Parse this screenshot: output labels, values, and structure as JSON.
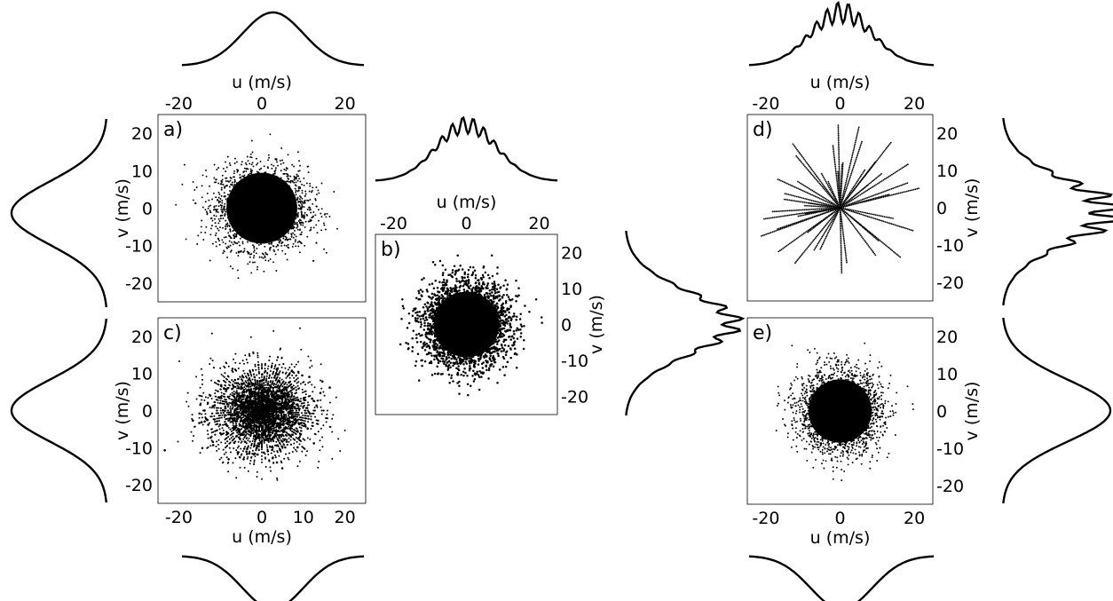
{
  "chart_data": [
    {
      "panel": "a)",
      "type": "scatter",
      "xlabel": "u (m/s)",
      "ylabel": "v (m/s)",
      "xlim": [
        -25,
        25
      ],
      "ylim": [
        -25,
        25
      ],
      "xticks": [
        "-20",
        "0",
        "20"
      ],
      "yticks": [
        "20",
        "10",
        "0",
        "-10",
        "-20"
      ],
      "x_axis_position": "top",
      "y_axis_position": "left",
      "distribution": "gaussian cloud",
      "center": [
        0,
        0
      ],
      "spread_sd": [
        5.5,
        5.5
      ],
      "outer_extent": 22,
      "marginals": {
        "u": "top",
        "v": "left"
      }
    },
    {
      "panel": "b)",
      "type": "scatter",
      "xlabel": "u (m/s)",
      "ylabel": "v (m/s)",
      "xlim": [
        -25,
        25
      ],
      "ylim": [
        -25,
        25
      ],
      "xticks": [
        "-20",
        "0",
        "20"
      ],
      "yticks": [
        "20",
        "10",
        "0",
        "-10",
        "-20"
      ],
      "x_axis_position": "top",
      "y_axis_position": "right",
      "distribution": "dense gaussian cloud",
      "center": [
        0,
        0
      ],
      "spread_sd": [
        5.8,
        5.8
      ],
      "outer_extent": 21,
      "marginals": {
        "u": "top",
        "v": "right"
      }
    },
    {
      "panel": "c)",
      "type": "scatter",
      "xlabel": "u (m/s)",
      "ylabel": "v (m/s)",
      "xlim": [
        -25,
        25
      ],
      "ylim": [
        -25,
        25
      ],
      "xticks": [
        "-20",
        "0",
        "10",
        "20"
      ],
      "yticks": [
        "20",
        "10",
        "0",
        "-10",
        "-20"
      ],
      "x_axis_position": "bottom",
      "y_axis_position": "left",
      "distribution": "radial streaks",
      "center": [
        0,
        0
      ],
      "spread_sd": [
        6,
        6
      ],
      "outer_extent": 24,
      "marginals": {
        "u": "bottom",
        "v": "left"
      }
    },
    {
      "panel": "d)",
      "type": "scatter",
      "xlabel": "u (m/s)",
      "ylabel": "v (m/s)",
      "xlim": [
        -25,
        25
      ],
      "ylim": [
        -25,
        25
      ],
      "xticks": [
        "-20",
        "0",
        "20"
      ],
      "yticks": [
        "20",
        "10",
        "0",
        "-10",
        "-20"
      ],
      "x_axis_position": "top",
      "y_axis_position": "right",
      "distribution": "radial lines (discrete directions)",
      "center": [
        0,
        0
      ],
      "outer_extent": 23,
      "marginals": {
        "u": "top",
        "v": "right"
      }
    },
    {
      "panel": "e)",
      "type": "scatter",
      "xlabel": "u (m/s)",
      "ylabel": "v (m/s)",
      "xlim": [
        -25,
        25
      ],
      "ylim": [
        -25,
        25
      ],
      "xticks": [
        "-20",
        "0",
        "20"
      ],
      "yticks": [
        "20",
        "10",
        "0",
        "-10",
        "-20"
      ],
      "x_axis_position": "bottom",
      "y_axis_position": "right",
      "distribution": "gaussian cloud",
      "center": [
        0,
        0
      ],
      "spread_sd": [
        5.5,
        5.5
      ],
      "outer_extent": 22,
      "marginals": {
        "u": "bottom",
        "v": "right"
      }
    }
  ]
}
